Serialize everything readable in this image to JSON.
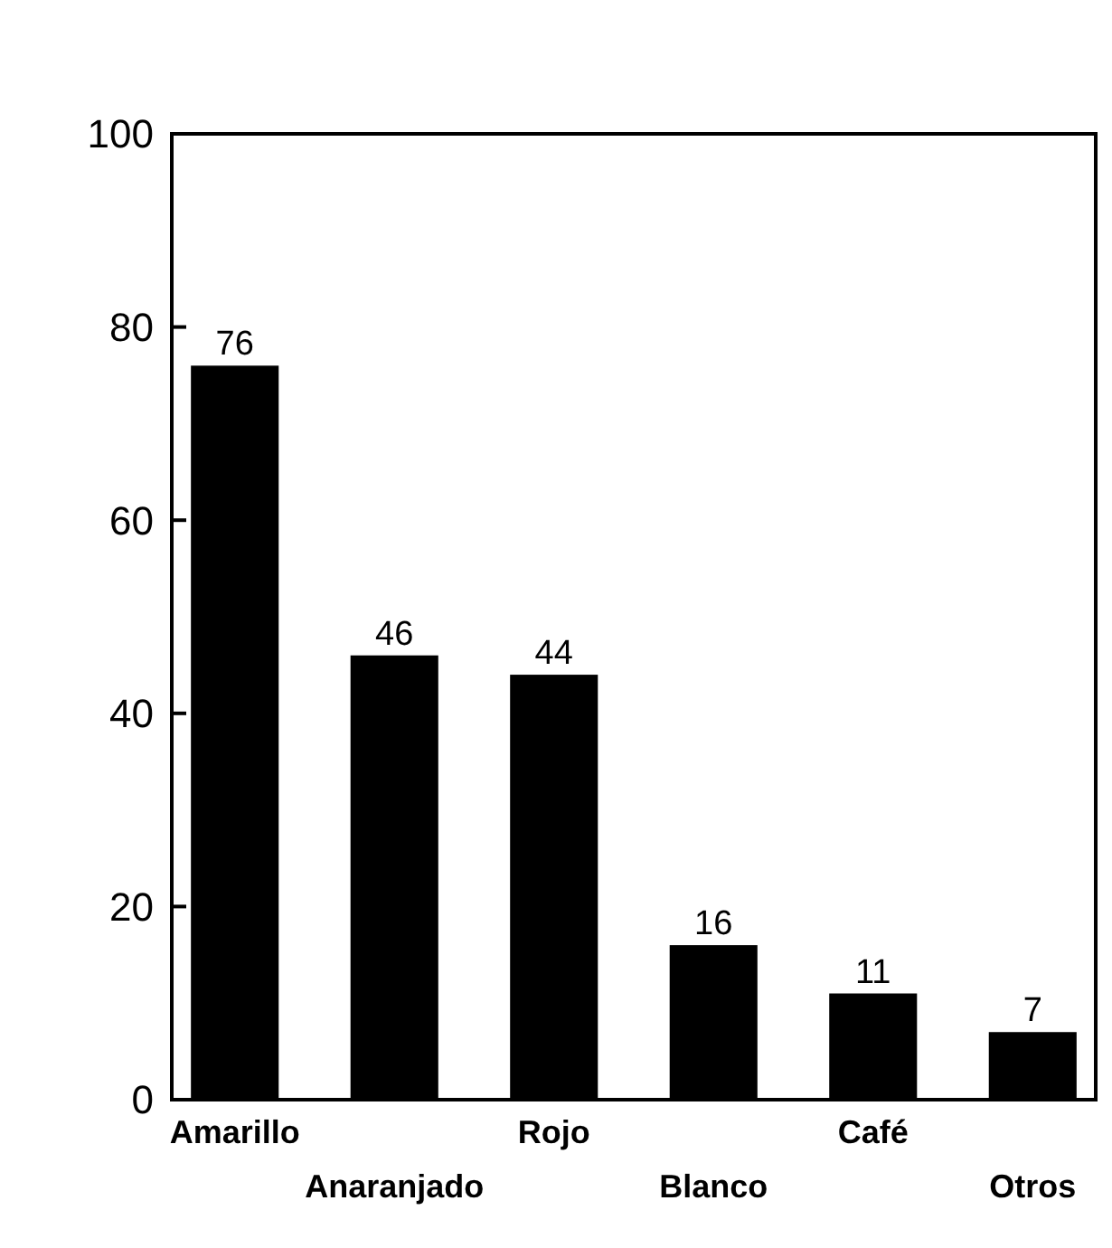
{
  "chart_data": {
    "type": "bar",
    "categories": [
      "Amarillo",
      "Anaranjado",
      "Rojo",
      "Blanco",
      "Café",
      "Otros"
    ],
    "values": [
      76,
      46,
      44,
      16,
      11,
      7
    ],
    "color": "#000000",
    "data_labels": true,
    "ylim": [
      0,
      100
    ],
    "yticks": [
      0,
      20,
      40,
      60,
      80,
      100
    ],
    "grid": false
  }
}
